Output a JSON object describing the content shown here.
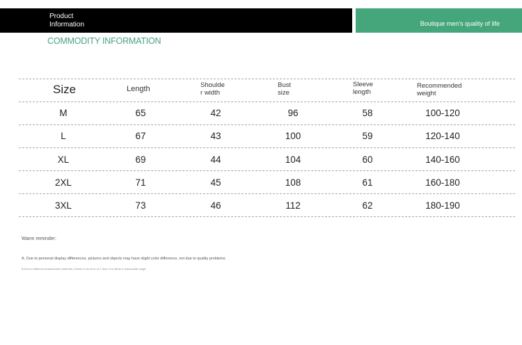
{
  "banner": {
    "left_line1": "Product",
    "left_line2": "Information",
    "right_text": "Boutique men's quality of life",
    "left_color": "#000000",
    "right_color": "#45a67c"
  },
  "section_title": "COMMODITY INFORMATION",
  "table": {
    "headers": {
      "size": "Size",
      "length": "Length",
      "shoulder_l1": "Shoulde",
      "shoulder_l2": "r width",
      "bust_l1": "Bust",
      "bust_l2": "size",
      "sleeve_l1": "Sleeve",
      "sleeve_l2": "length",
      "weight_l1": "Recommended",
      "weight_l2": "weight"
    },
    "rows": [
      {
        "size": "M",
        "length": "65",
        "shoulder": "42",
        "bust": "96",
        "sleeve": "58",
        "weight": "100-120"
      },
      {
        "size": "L",
        "length": "67",
        "shoulder": "43",
        "bust": "100",
        "sleeve": "59",
        "weight": "120-140"
      },
      {
        "size": "XL",
        "length": "69",
        "shoulder": "44",
        "bust": "104",
        "sleeve": "60",
        "weight": "140-160"
      },
      {
        "size": "2XL",
        "length": "71",
        "shoulder": "45",
        "bust": "108",
        "sleeve": "61",
        "weight": "160-180"
      },
      {
        "size": "3XL",
        "length": "73",
        "shoulder": "46",
        "bust": "112",
        "sleeve": "62",
        "weight": "180-190"
      }
    ]
  },
  "notes": {
    "title": "Warm reminder:",
    "line_a": "A. Due to personal display differences, pictures and objects may have slight color difference, not due to quality problems.",
    "line_b": "B.Due to different measurement methods, if there is an error of 1-3cm, it is within a reasonable range."
  }
}
